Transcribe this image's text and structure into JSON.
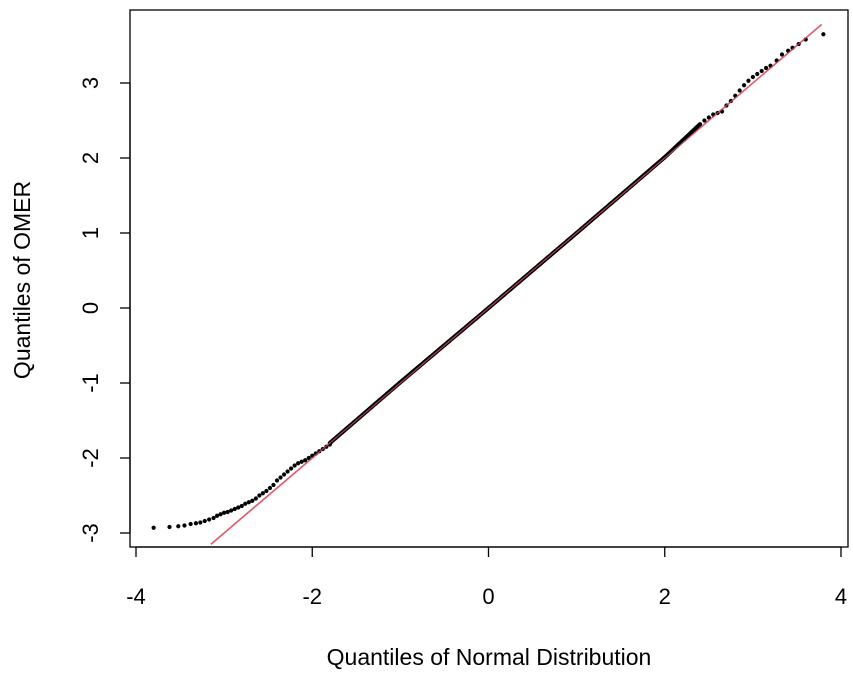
{
  "chart_data": {
    "type": "scatter",
    "title": "",
    "xlabel": "Quantiles of Normal Distribution",
    "ylabel": "Quantiles of OMER",
    "xlim": [
      -4.0,
      4.0
    ],
    "ylim": [
      -3.1,
      3.75
    ],
    "x_ticks": [
      -4,
      -2,
      0,
      2,
      4
    ],
    "y_ticks": [
      -3,
      -2,
      -1,
      0,
      1,
      2,
      3
    ],
    "x_tick_labels": [
      "-4",
      "-2",
      "0",
      "2",
      "4"
    ],
    "y_tick_labels": [
      "-3",
      "-2",
      "-1",
      "0",
      "1",
      "2",
      "3"
    ],
    "grid": false,
    "legend": "none",
    "point_color": "#000000",
    "reference_line": {
      "slope": 1,
      "intercept": 0,
      "color": "#e05a6e"
    },
    "series": [
      {
        "tail_points": {
          "x": [
            -3.8,
            -3.62,
            -3.52,
            -3.45,
            -3.38,
            -3.32,
            -3.27,
            -3.22,
            -3.17,
            -3.12,
            -3.08,
            -3.04,
            -3.0,
            -2.96,
            -2.92,
            -2.88,
            -2.84,
            -2.8,
            -2.76,
            -2.72,
            -2.68,
            -2.64,
            -2.6,
            -2.56,
            -2.52,
            -2.48,
            -2.44,
            -2.4,
            -2.36,
            -2.32,
            -2.28,
            -2.24,
            -2.2,
            -2.16,
            -2.12,
            -2.08,
            -2.04,
            -2.0,
            -1.96,
            -1.92,
            -1.88,
            -1.84,
            -1.8,
            2.4,
            2.45,
            2.5,
            2.55,
            2.6,
            2.65,
            2.7,
            2.75,
            2.8,
            2.85,
            2.9,
            2.95,
            3.0,
            3.05,
            3.1,
            3.15,
            3.2,
            3.27,
            3.33,
            3.4,
            3.45,
            3.52,
            3.6,
            3.8
          ],
          "y": [
            -2.93,
            -2.92,
            -2.91,
            -2.9,
            -2.88,
            -2.87,
            -2.86,
            -2.84,
            -2.82,
            -2.8,
            -2.77,
            -2.75,
            -2.73,
            -2.72,
            -2.7,
            -2.68,
            -2.66,
            -2.64,
            -2.61,
            -2.59,
            -2.57,
            -2.54,
            -2.5,
            -2.47,
            -2.44,
            -2.4,
            -2.36,
            -2.3,
            -2.26,
            -2.22,
            -2.18,
            -2.14,
            -2.1,
            -2.07,
            -2.05,
            -2.03,
            -2.0,
            -1.97,
            -1.94,
            -1.91,
            -1.88,
            -1.85,
            -1.82,
            2.45,
            2.5,
            2.54,
            2.58,
            2.6,
            2.62,
            2.7,
            2.76,
            2.83,
            2.9,
            2.97,
            3.03,
            3.08,
            3.12,
            3.16,
            3.2,
            3.23,
            3.3,
            3.38,
            3.43,
            3.47,
            3.52,
            3.58,
            3.65
          ]
        },
        "body_trace": {
          "x": [
            -1.8,
            -1.0,
            0.0,
            1.0,
            2.0,
            2.4
          ],
          "y": [
            -1.8,
            -0.99,
            0.0,
            1.0,
            2.01,
            2.45
          ]
        }
      }
    ]
  }
}
